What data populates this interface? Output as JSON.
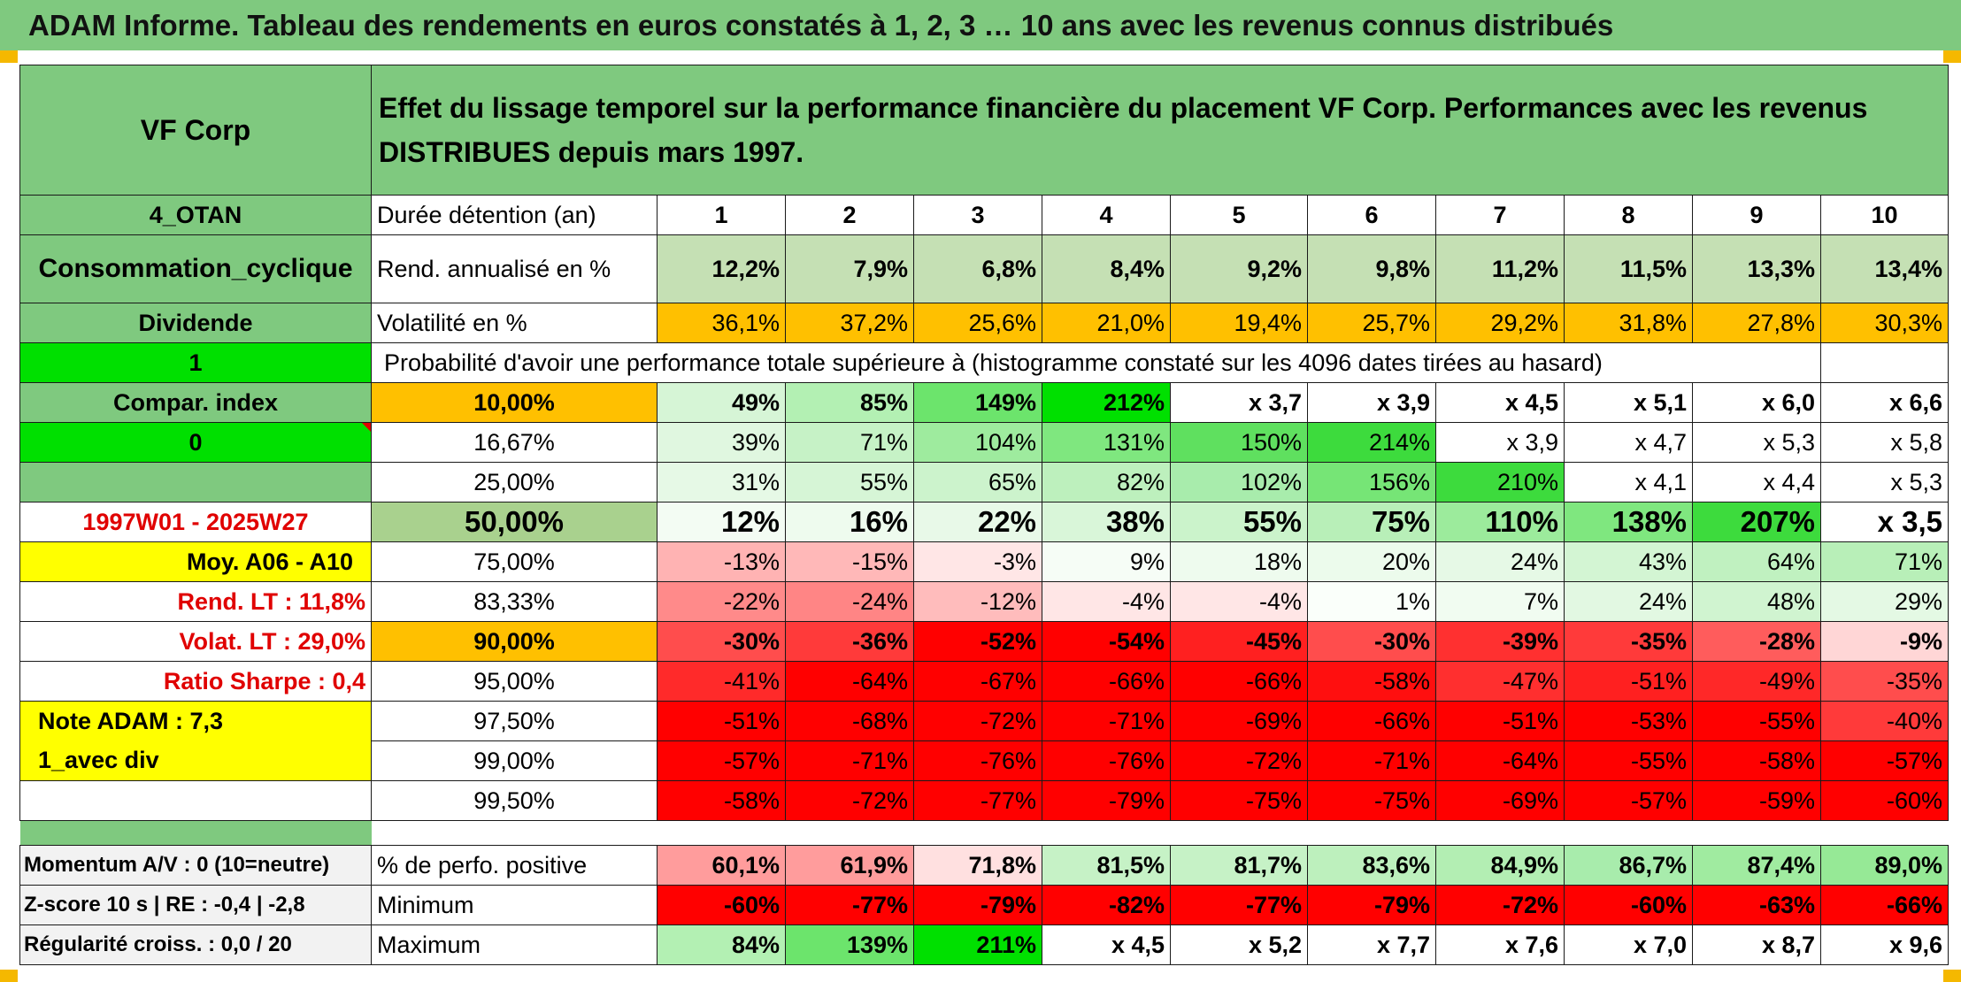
{
  "title": "ADAM Informe. Tableau des rendements en euros constatés à 1, 2, 3 … 10 ans avec les revenus connus distribués",
  "header": {
    "company": "VF Corp",
    "description": "Effet du lissage temporel sur la performance financière du placement VF Corp. Performances avec les revenus DISTRIBUES depuis mars 1997."
  },
  "side": {
    "code": "4_OTAN",
    "sector": "Consommation_cyclique",
    "dividend_label": "Dividende",
    "flag_1": "1",
    "compar_index": "Compar. index",
    "flag_0": "0",
    "blank": "",
    "period": "1997W01 - 2025W27",
    "moy": "Moy. A06 - A10",
    "rend_lt": "Rend. LT :    11,8%",
    "volat_lt": "Volat. LT :    29,0%",
    "sharpe": "Ratio Sharpe :    0,4",
    "note": "Note ADAM : 7,3",
    "avec_div": "1_avec div"
  },
  "rows": {
    "duration_label": "Durée détention (an)",
    "years": [
      "1",
      "2",
      "3",
      "4",
      "5",
      "6",
      "7",
      "8",
      "9",
      "10"
    ],
    "rend_label": "Rend. annualisé en %",
    "rend": [
      "12,2%",
      "7,9%",
      "6,8%",
      "8,4%",
      "9,2%",
      "9,8%",
      "11,2%",
      "11,5%",
      "13,3%",
      "13,4%"
    ],
    "vol_label": "Volatilité en %",
    "vol": [
      "36,1%",
      "37,2%",
      "25,6%",
      "21,0%",
      "19,4%",
      "25,7%",
      "29,2%",
      "31,8%",
      "27,8%",
      "30,3%"
    ],
    "proba_label": "Probabilité d'avoir une performance totale supérieure à (histogramme constaté sur les 4096 dates tirées au hasard)"
  },
  "prob_rows": [
    {
      "label": "10,00%",
      "cells": [
        "49%",
        "85%",
        "149%",
        "212%",
        "x 3,7",
        "x 3,9",
        "x 4,5",
        "x 5,1",
        "x 6,0",
        "x 6,6"
      ]
    },
    {
      "label": "16,67%",
      "cells": [
        "39%",
        "71%",
        "104%",
        "131%",
        "150%",
        "214%",
        "x 3,9",
        "x 4,7",
        "x 5,3",
        "x 5,8"
      ]
    },
    {
      "label": "25,00%",
      "cells": [
        "31%",
        "55%",
        "65%",
        "82%",
        "102%",
        "156%",
        "210%",
        "x 4,1",
        "x 4,4",
        "x 5,3"
      ]
    },
    {
      "label": "50,00%",
      "cells": [
        "12%",
        "16%",
        "22%",
        "38%",
        "55%",
        "75%",
        "110%",
        "138%",
        "207%",
        "x 3,5"
      ]
    },
    {
      "label": "75,00%",
      "cells": [
        "-13%",
        "-15%",
        "-3%",
        "9%",
        "18%",
        "20%",
        "24%",
        "43%",
        "64%",
        "71%"
      ]
    },
    {
      "label": "83,33%",
      "cells": [
        "-22%",
        "-24%",
        "-12%",
        "-4%",
        "-4%",
        "1%",
        "7%",
        "24%",
        "48%",
        "29%"
      ]
    },
    {
      "label": "90,00%",
      "cells": [
        "-30%",
        "-36%",
        "-52%",
        "-54%",
        "-45%",
        "-30%",
        "-39%",
        "-35%",
        "-28%",
        "-9%"
      ]
    },
    {
      "label": "95,00%",
      "cells": [
        "-41%",
        "-64%",
        "-67%",
        "-66%",
        "-66%",
        "-58%",
        "-47%",
        "-51%",
        "-49%",
        "-35%"
      ]
    },
    {
      "label": "97,50%",
      "cells": [
        "-51%",
        "-68%",
        "-72%",
        "-71%",
        "-69%",
        "-66%",
        "-51%",
        "-53%",
        "-55%",
        "-40%"
      ]
    },
    {
      "label": "99,00%",
      "cells": [
        "-57%",
        "-71%",
        "-76%",
        "-76%",
        "-72%",
        "-71%",
        "-64%",
        "-55%",
        "-58%",
        "-57%"
      ]
    },
    {
      "label": "99,50%",
      "cells": [
        "-58%",
        "-72%",
        "-77%",
        "-79%",
        "-75%",
        "-75%",
        "-69%",
        "-57%",
        "-59%",
        "-60%"
      ]
    }
  ],
  "bottom": [
    {
      "side": "Momentum A/V : 0 (10=neutre)",
      "label": "% de perfo. positive",
      "cells": [
        "60,1%",
        "61,9%",
        "71,8%",
        "81,5%",
        "81,7%",
        "83,6%",
        "84,9%",
        "86,7%",
        "87,4%",
        "89,0%"
      ]
    },
    {
      "side": "Z-score 10 s | RE : -0,4 | -2,8",
      "label": "Minimum",
      "cells": [
        "-60%",
        "-77%",
        "-79%",
        "-82%",
        "-77%",
        "-79%",
        "-72%",
        "-60%",
        "-63%",
        "-66%"
      ]
    },
    {
      "side": "Régularité croiss. : 0,0 / 20",
      "label": "Maximum",
      "cells": [
        "84%",
        "139%",
        "211%",
        "x 4,5",
        "x 5,2",
        "x 7,7",
        "x 7,6",
        "x 7,0",
        "x 8,7",
        "x 9,6"
      ]
    }
  ],
  "colors": {
    "header_green": "#7fc97f",
    "bright_green": "#00e000",
    "yellow": "#ffff00",
    "orange": "#ffc000",
    "red": "#ff0000"
  },
  "cell_colors": {
    "rend": [
      "#c5e0b4",
      "#c5e0b4",
      "#c5e0b4",
      "#c5e0b4",
      "#c5e0b4",
      "#c5e0b4",
      "#c5e0b4",
      "#c5e0b4",
      "#c5e0b4",
      "#c5e0b4"
    ],
    "vol": [
      "#ffc000",
      "#ffc000",
      "#ffc000",
      "#ffc000",
      "#ffc000",
      "#ffc000",
      "#ffc000",
      "#ffc000",
      "#ffc000",
      "#ffc000"
    ],
    "prob": [
      [
        "#d6f5d6",
        "#b3f0b3",
        "#6ce46c",
        "#00e000",
        "#ffffff",
        "#ffffff",
        "#ffffff",
        "#ffffff",
        "#ffffff",
        "#ffffff"
      ],
      [
        "#e0f7e0",
        "#c6f2c6",
        "#9eeb9e",
        "#7fe77f",
        "#5fe05f",
        "#3ddb3d",
        "#ffffff",
        "#ffffff",
        "#ffffff",
        "#ffffff"
      ],
      [
        "#e6f9e6",
        "#d6f5d6",
        "#ccf3cc",
        "#bdf0bd",
        "#a8ecac",
        "#76e576",
        "#3ddb3d",
        "#ffffff",
        "#ffffff",
        "#ffffff"
      ],
      [
        "#f3fcf3",
        "#eefbee",
        "#e8f9e8",
        "#d9f6d9",
        "#cbf3cb",
        "#b8efb8",
        "#9ceb9c",
        "#7fe77f",
        "#3ddb3d",
        "#ffffff"
      ],
      [
        "#ffb3b3",
        "#ffb8b8",
        "#ffe6e6",
        "#f6fdf6",
        "#eefbee",
        "#ecfbec",
        "#e6f9e6",
        "#d3f5d3",
        "#c0f1c0",
        "#b8efb8"
      ],
      [
        "#ff8a8a",
        "#ff8585",
        "#ffbcbc",
        "#ffe6e6",
        "#ffe6e6",
        "#fafffa",
        "#f1fcf1",
        "#e2f8e2",
        "#d0f4d0",
        "#e4f9e4"
      ],
      [
        "#ff4d4d",
        "#ff3a3a",
        "#ff0000",
        "#ff0000",
        "#ff2020",
        "#ff4d4d",
        "#ff3030",
        "#ff3a3a",
        "#ff5c5c",
        "#ffd6d6"
      ],
      [
        "#ff2a2a",
        "#ff0000",
        "#ff0000",
        "#ff0000",
        "#ff0000",
        "#ff0f0f",
        "#ff2f2f",
        "#ff2020",
        "#ff2828",
        "#ff4d4d"
      ],
      [
        "#ff0000",
        "#ff0000",
        "#ff0000",
        "#ff0000",
        "#ff0000",
        "#ff0000",
        "#ff0000",
        "#ff0000",
        "#ff0000",
        "#ff3a3a"
      ],
      [
        "#ff0000",
        "#ff0000",
        "#ff0000",
        "#ff0000",
        "#ff0000",
        "#ff0000",
        "#ff0000",
        "#ff0000",
        "#ff0000",
        "#ff0000"
      ],
      [
        "#ff0000",
        "#ff0000",
        "#ff0000",
        "#ff0000",
        "#ff0000",
        "#ff0000",
        "#ff0000",
        "#ff0000",
        "#ff0000",
        "#ff0000"
      ]
    ],
    "bottom": [
      [
        "#ff9c9c",
        "#ff9c9c",
        "#ffe0e0",
        "#c6f2c6",
        "#c6f2c6",
        "#bdf0bd",
        "#b3eeb3",
        "#a8ecac",
        "#a0eba0",
        "#96e996"
      ],
      [
        "#ff0000",
        "#ff0000",
        "#ff0000",
        "#ff0000",
        "#ff0000",
        "#ff0000",
        "#ff0000",
        "#ff0000",
        "#ff0000",
        "#ff0000"
      ],
      [
        "#b3f0b3",
        "#6ce46c",
        "#00e000",
        "#ffffff",
        "#ffffff",
        "#ffffff",
        "#ffffff",
        "#ffffff",
        "#ffffff",
        "#ffffff"
      ]
    ]
  }
}
